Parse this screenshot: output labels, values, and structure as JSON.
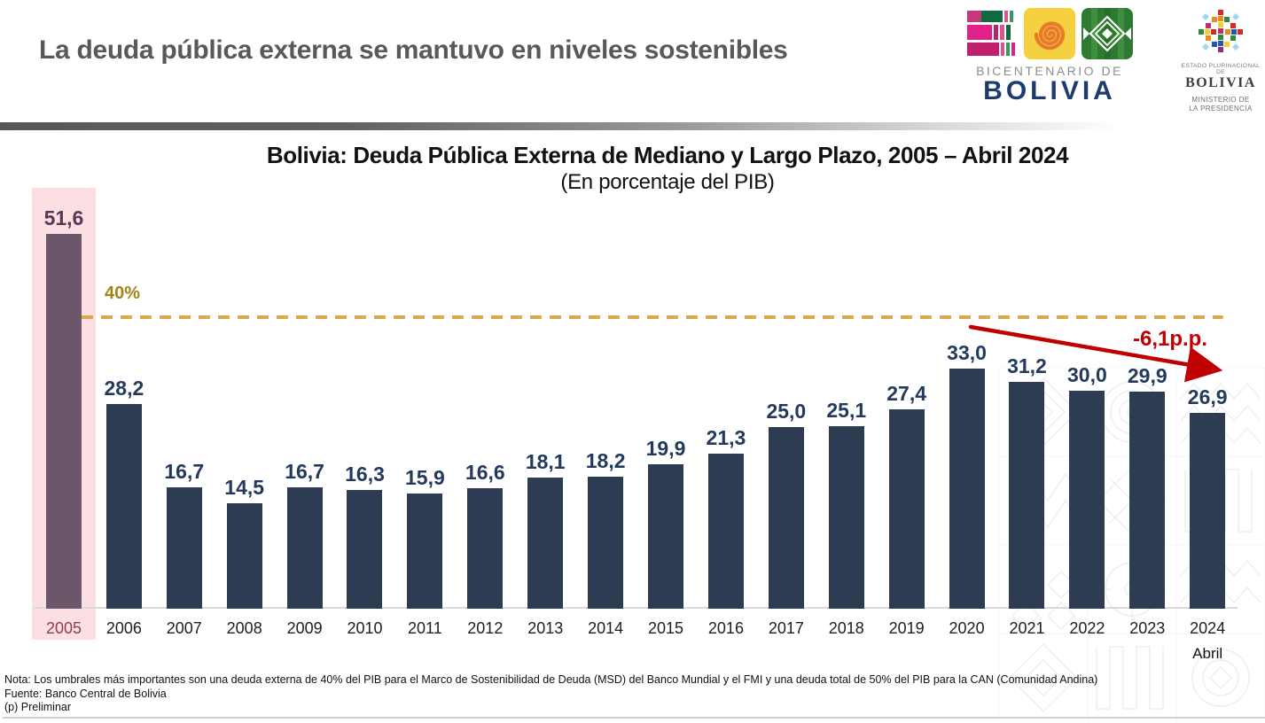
{
  "header": {
    "title": "La deuda pública externa se mantuvo en niveles sostenibles",
    "logo_bicentenario": {
      "line1": "BICENTENARIO DE",
      "line2": "BOLIVIA"
    },
    "logo_ministerio": {
      "line1": "ESTADO PLURINACIONAL DE",
      "line2": "BOLIVIA",
      "line3": "MINISTERIO DE",
      "line4": "LA PRESIDENCIA"
    }
  },
  "chart_data": {
    "type": "bar",
    "title": "Bolivia: Deuda Pública Externa de Mediano y Largo Plazo, 2005 – Abril 2024",
    "subtitle": "(En porcentaje del PIB)",
    "categories": [
      "2005",
      "2006",
      "2007",
      "2008",
      "2009",
      "2010",
      "2011",
      "2012",
      "2013",
      "2014",
      "2015",
      "2016",
      "2017",
      "2018",
      "2019",
      "2020",
      "2021",
      "2022",
      "2023",
      "2024"
    ],
    "values": [
      51.6,
      28.2,
      16.7,
      14.5,
      16.7,
      16.3,
      15.9,
      16.6,
      18.1,
      18.2,
      19.9,
      21.3,
      25.0,
      25.1,
      27.4,
      33.0,
      31.2,
      30.0,
      29.9,
      26.9
    ],
    "ylim": [
      0,
      58
    ],
    "grid": false,
    "legend": "none",
    "highlight_category": "2005",
    "last_period_label": "Abril",
    "threshold": {
      "value": 40,
      "label": "40%"
    },
    "annotation": {
      "label": "-6,1p.p.",
      "from_category": "2020",
      "to_category": "2024"
    },
    "colors": {
      "bar": "#2d3c53",
      "highlight_bar": "#6b5769",
      "highlight_band": "#fcdfe2",
      "value_label": "#233a5e",
      "highlight_value_label": "#553a56",
      "highlight_year_label": "#8d4049",
      "threshold_line": "#d9a94f",
      "threshold_label": "#a08418",
      "arrow": "#c00000"
    }
  },
  "footer": {
    "note": "Nota: Los umbrales más importantes son una deuda externa de 40% del PIB para el Marco de Sostenibilidad de Deuda (MSD) del Banco Mundial y el FMI y una deuda total de 50% del PIB para la CAN (Comunidad Andina)",
    "source": "Fuente: Banco Central de Bolivia",
    "preliminary": "(p) Preliminar"
  }
}
